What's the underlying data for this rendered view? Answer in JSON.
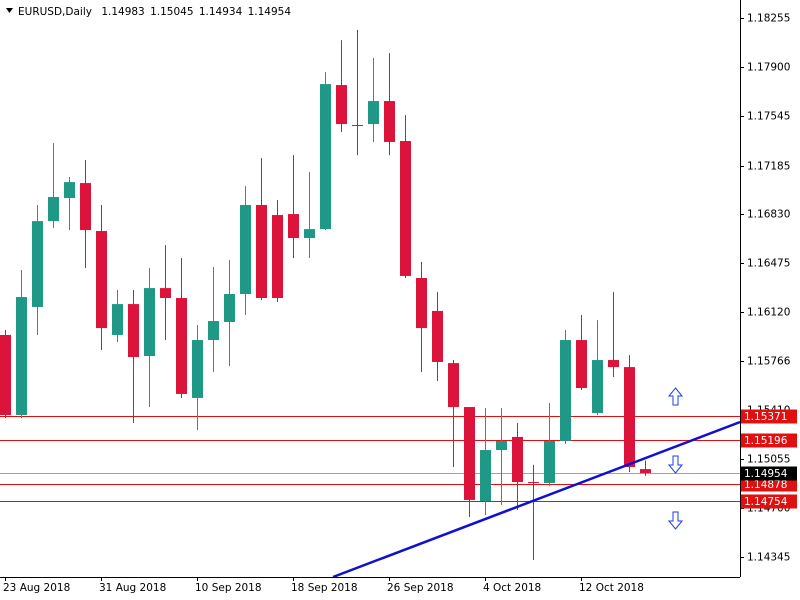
{
  "chart_data": {
    "type": "candlestick",
    "symbol": "EURUSD,Daily",
    "categories": [
      "23 Aug 2018",
      null,
      null,
      null,
      null,
      null,
      "31 Aug 2018",
      null,
      null,
      null,
      null,
      null,
      "10 Sep 2018",
      null,
      null,
      null,
      null,
      null,
      "18 Sep 2018",
      null,
      null,
      null,
      null,
      null,
      "26 Sep 2018",
      null,
      null,
      null,
      null,
      null,
      "4 Oct 2018",
      null,
      null,
      null,
      null,
      null,
      "12 Oct 2018",
      null,
      null,
      null,
      null
    ],
    "open": [
      1.15956,
      1.15375,
      1.16159,
      1.16782,
      1.16949,
      1.17058,
      1.1671,
      1.15956,
      1.1618,
      1.15803,
      1.16296,
      1.16224,
      1.15499,
      1.15919,
      1.1605,
      1.16253,
      1.16899,
      1.16826,
      1.16833,
      1.16659,
      1.16724,
      1.17769,
      1.17479,
      1.17486,
      1.17653,
      1.17363,
      1.16369,
      1.1613,
      1.15752,
      1.15433,
      1.14751,
      1.15121,
      1.15216,
      1.14889,
      1.14882,
      1.15187,
      1.15919,
      1.1539,
      1.15774,
      1.15723,
      1.14983
    ],
    "high": [
      1.15992,
      1.16427,
      1.16899,
      1.17348,
      1.17102,
      1.17225,
      1.16899,
      1.16282,
      1.16282,
      1.16442,
      1.16608,
      1.16514,
      1.16028,
      1.16449,
      1.165,
      1.17036,
      1.17239,
      1.16935,
      1.17261,
      1.17138,
      1.17863,
      1.18095,
      1.18168,
      1.17965,
      1.18001,
      1.17551,
      1.16485,
      1.16267,
      1.15774,
      1.15426,
      1.15426,
      1.15426,
      1.15317,
      1.15013,
      1.15462,
      1.15992,
      1.16101,
      1.16064,
      1.16267,
      1.1581,
      1.15045
    ],
    "low": [
      1.15353,
      1.15353,
      1.15956,
      1.16732,
      1.16717,
      1.16442,
      1.15847,
      1.15905,
      1.15317,
      1.15433,
      1.15919,
      1.15499,
      1.15266,
      1.15687,
      1.15731,
      1.16101,
      1.16209,
      1.16195,
      1.16514,
      1.16514,
      1.16717,
      1.17428,
      1.17261,
      1.17356,
      1.17261,
      1.16369,
      1.15687,
      1.15622,
      1.14998,
      1.14635,
      1.1465,
      1.14722,
      1.14686,
      1.14323,
      1.1486,
      1.15165,
      1.15557,
      1.15375,
      1.15651,
      1.14962,
      1.14934
    ],
    "close": [
      1.15375,
      1.16231,
      1.16782,
      1.16957,
      1.17065,
      1.16717,
      1.16006,
      1.1618,
      1.15796,
      1.16296,
      1.16224,
      1.15528,
      1.15919,
      1.16057,
      1.16253,
      1.16899,
      1.16224,
      1.16224,
      1.16659,
      1.16724,
      1.17776,
      1.17486,
      1.17472,
      1.17653,
      1.17356,
      1.16384,
      1.16006,
      1.1576,
      1.15433,
      1.14759,
      1.15121,
      1.15187,
      1.14889,
      1.14882,
      1.15187,
      1.15919,
      1.15571,
      1.15774,
      1.15723,
      1.14998,
      1.14954
    ],
    "up_color": "#1f9886",
    "down_color": "#dc143c",
    "ylim": [
      1.142,
      1.18386
    ],
    "yticks": [
      1.18255,
      {
        "value": 1.179,
        "label": "1.17900"
      },
      1.17545,
      1.17185,
      {
        "value": 1.1683,
        "label": "1.16830"
      },
      1.16475,
      {
        "value": 1.1612,
        "label": "1.16120"
      },
      1.15766,
      {
        "value": 1.1541,
        "label": "1.15410"
      },
      1.15055,
      {
        "value": 1.147,
        "label": "1.14700"
      },
      1.14345
    ],
    "hlines": [
      {
        "value": 1.15371,
        "color": "#e01010"
      },
      {
        "value": 1.15196,
        "color": "#e01010"
      },
      {
        "value": 1.14878,
        "color": "#e01010"
      },
      {
        "value": 1.14754,
        "color": "#e01010"
      }
    ],
    "current_price": {
      "value": 1.14954,
      "color": "#9aa6a6"
    },
    "trendline": {
      "color": "#1010d0",
      "points": [
        {
          "x": 20.5,
          "y": 1.142
        },
        {
          "x": 45.94,
          "y": 1.15324
        }
      ]
    }
  }
}
